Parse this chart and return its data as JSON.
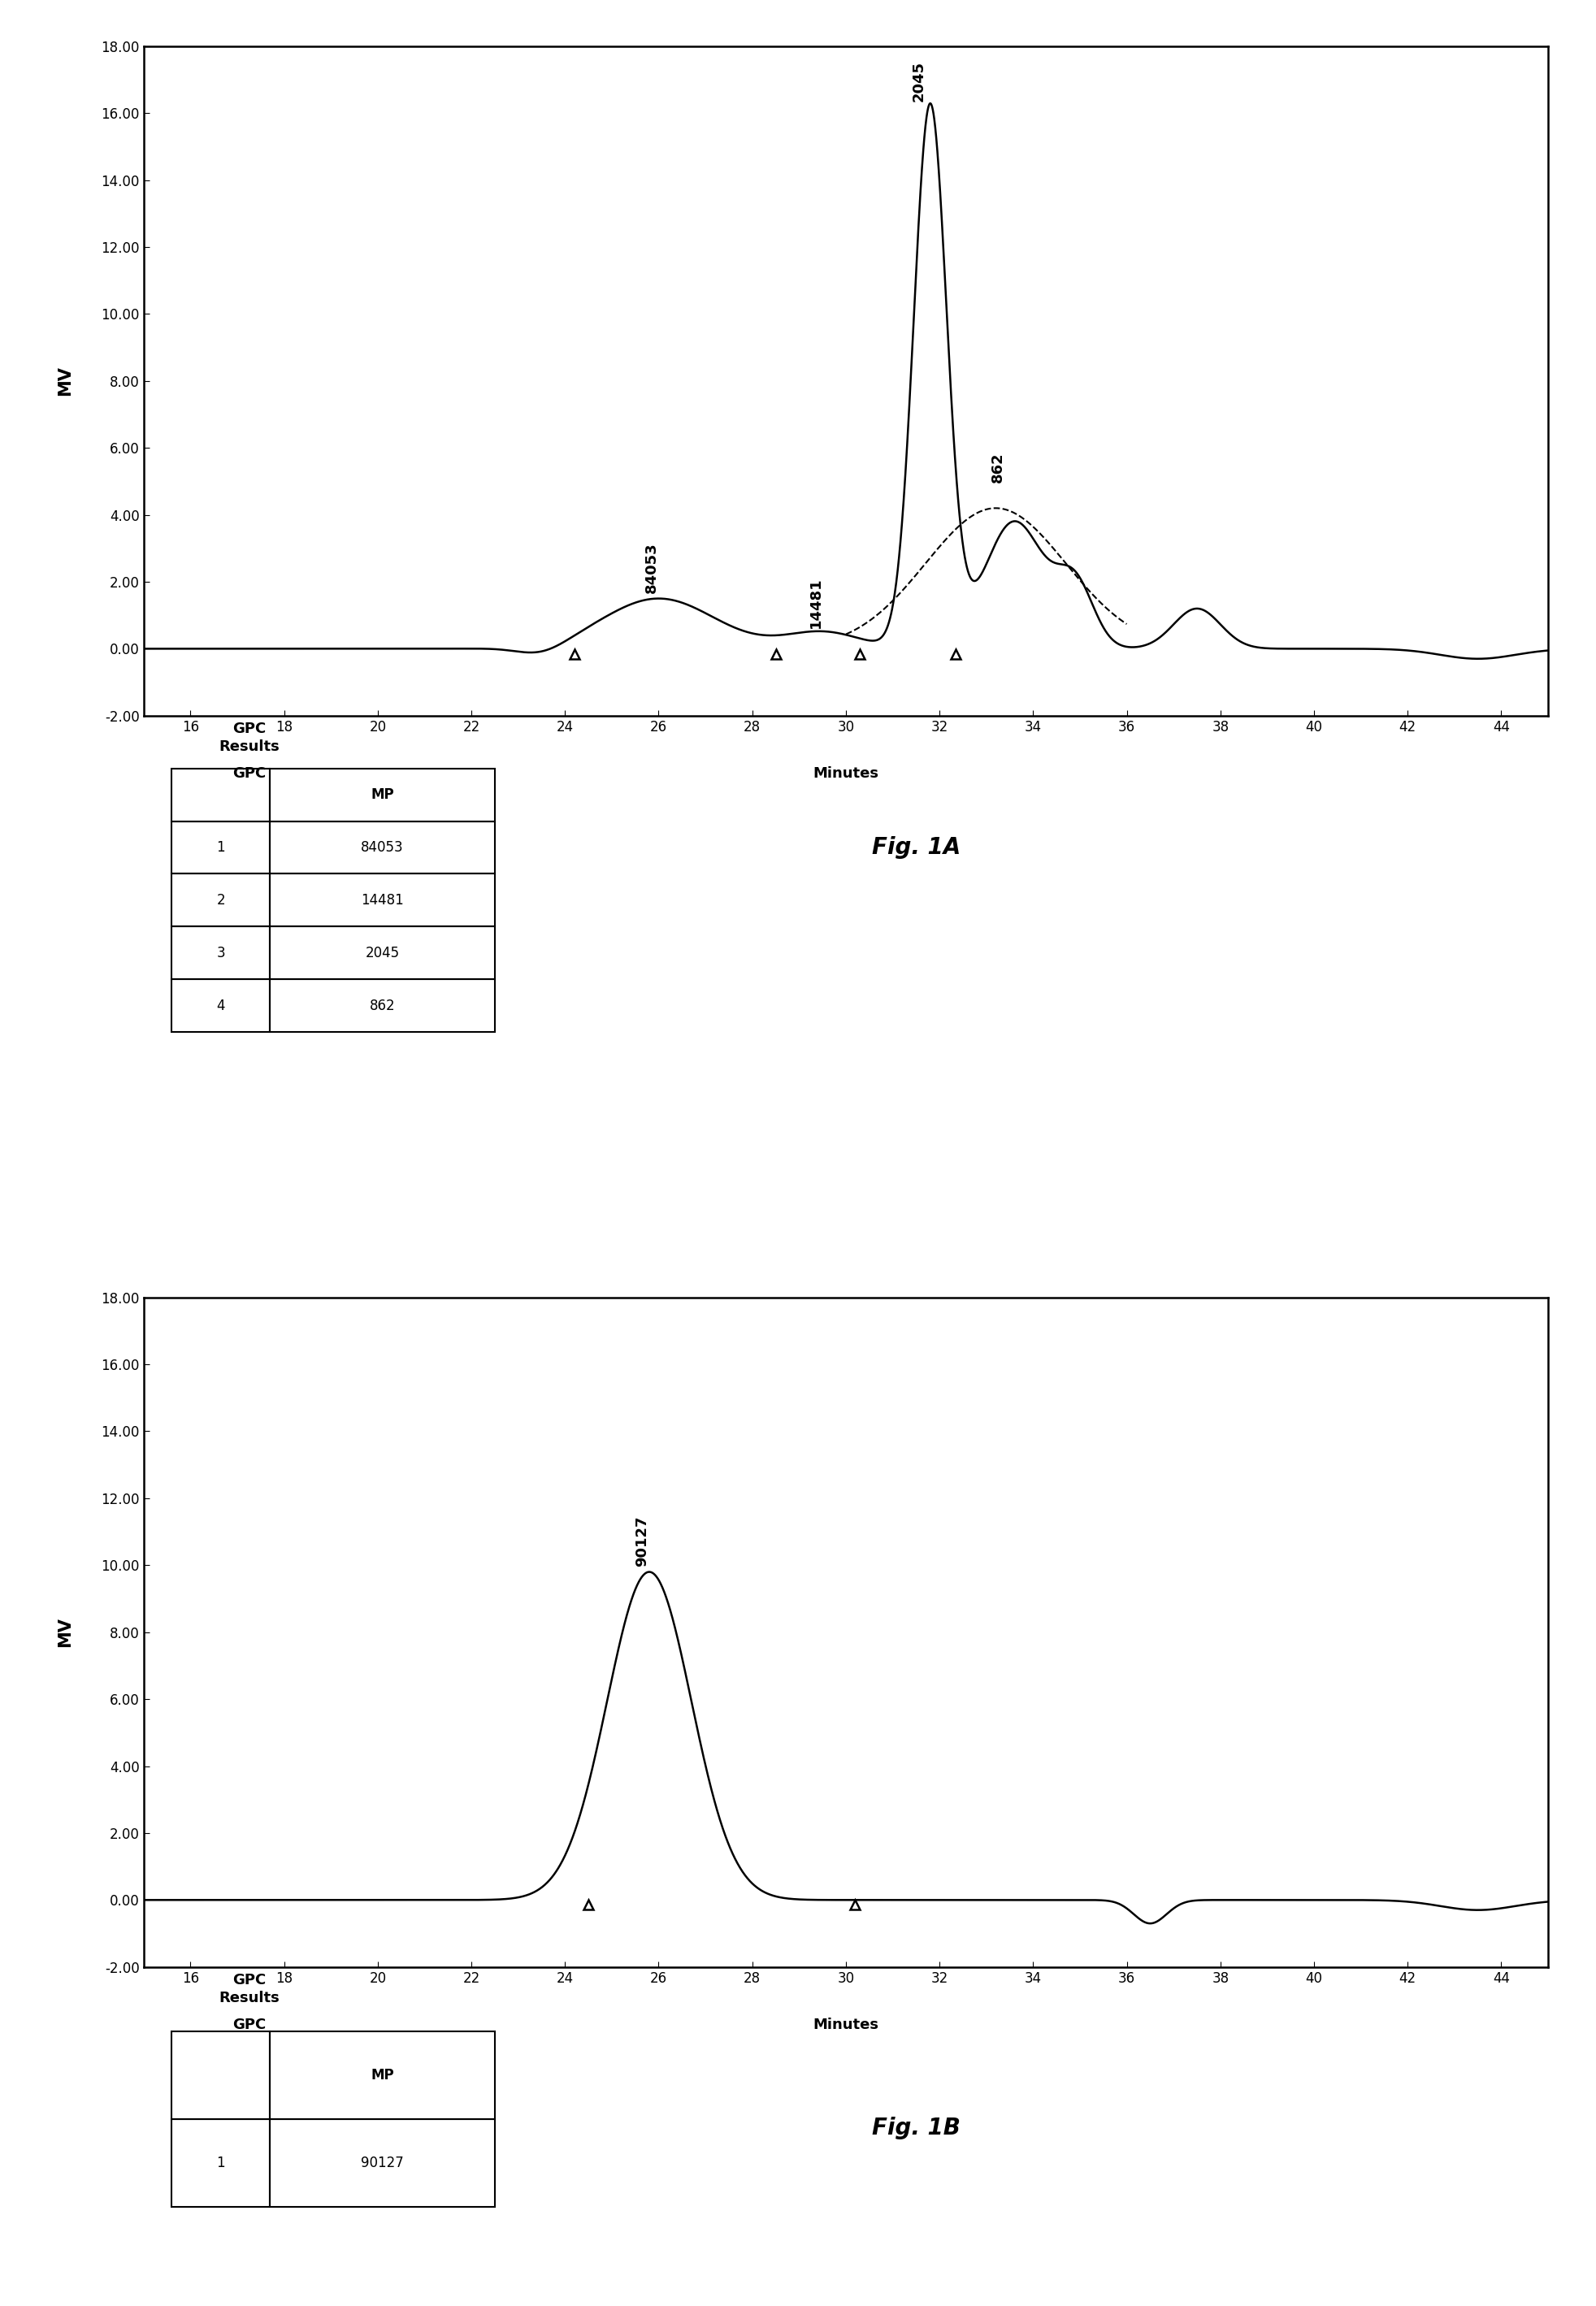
{
  "fig1a": {
    "title": "Fig. 1A",
    "ylabel": "MV",
    "xlabel": "Minutes",
    "xlabel2": "GPC",
    "ylim": [
      -2.0,
      18.0
    ],
    "xlim": [
      15,
      45
    ],
    "yticks": [
      -2.0,
      0.0,
      2.0,
      4.0,
      6.0,
      8.0,
      10.0,
      12.0,
      14.0,
      16.0,
      18.0
    ],
    "xticks": [
      16,
      18,
      20,
      22,
      24,
      26,
      28,
      30,
      32,
      34,
      36,
      38,
      40,
      42,
      44
    ],
    "table": {
      "rows": [
        [
          "1",
          "84053"
        ],
        [
          "2",
          "14481"
        ],
        [
          "3",
          "2045"
        ],
        [
          "4",
          "862"
        ]
      ],
      "header": [
        "",
        "MP"
      ]
    }
  },
  "fig1b": {
    "title": "Fig. 1B",
    "ylabel": "MV",
    "xlabel": "Minutes",
    "xlabel2": "GPC",
    "ylim": [
      -2.0,
      18.0
    ],
    "xlim": [
      15,
      45
    ],
    "yticks": [
      -2.0,
      0.0,
      2.0,
      4.0,
      6.0,
      8.0,
      10.0,
      12.0,
      14.0,
      16.0,
      18.0
    ],
    "xticks": [
      16,
      18,
      20,
      22,
      24,
      26,
      28,
      30,
      32,
      34,
      36,
      38,
      40,
      42,
      44
    ],
    "table": {
      "rows": [
        [
          "1",
          "90127"
        ]
      ],
      "header": [
        "",
        "MP"
      ]
    }
  }
}
